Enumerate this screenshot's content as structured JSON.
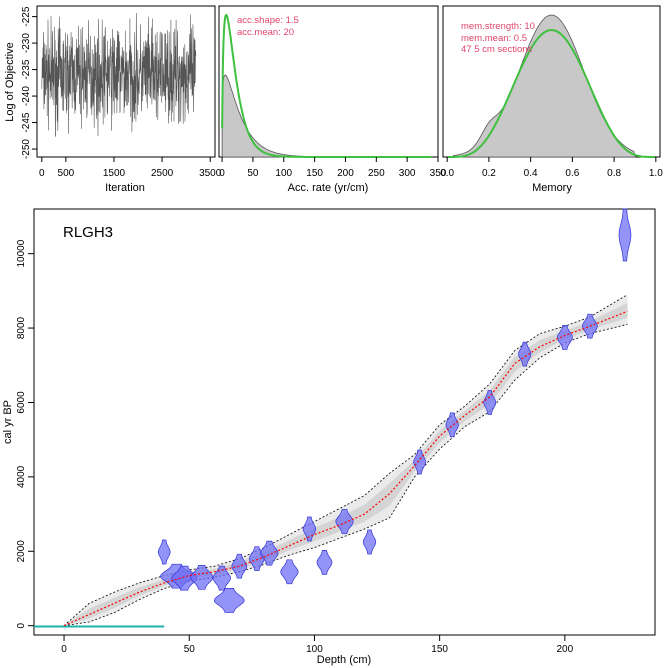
{
  "colors": {
    "prior": "#3fc13f",
    "posterior_fill": "#c8c8c8",
    "posterior_line": "#555555",
    "iteration_trace": "#555555",
    "date_fill": "#6f6ff5",
    "date_line": "#3434d8",
    "model_mean": "#ff0000",
    "envelope": "#000000",
    "notes": "#e0466c",
    "core_bar": "#20b2aa"
  },
  "site": {
    "name": "RLGH3"
  },
  "iteration_panel": {
    "xlabel": "Iteration",
    "ylabel": "Log of Objective",
    "xticks": [
      "0",
      "500",
      "1500",
      "2500",
      "3500"
    ],
    "xtick_values": [
      0,
      500,
      1500,
      2500,
      3500
    ],
    "yticks": [
      "-225",
      "-230",
      "-235",
      "-240",
      "-245",
      "-250"
    ],
    "ytick_values": [
      -225,
      -230,
      -235,
      -240,
      -245,
      -250
    ],
    "xlim": [
      -100,
      3600
    ],
    "ylim": [
      -251.5,
      -223
    ],
    "n_iterations": 3200,
    "mean": -236,
    "spread": 4.5
  },
  "acc_panel": {
    "xlabel": "Acc. rate (yr/cm)",
    "xticks": [
      "0",
      "50",
      "100",
      "150",
      "200",
      "250",
      "300",
      "350"
    ],
    "xtick_values": [
      0,
      50,
      100,
      150,
      200,
      250,
      300,
      350
    ],
    "xlim": [
      -5,
      350
    ],
    "prior_label_1": "acc.shape:  1.5",
    "prior_label_2": "acc.mean:  20",
    "acc_shape": 1.5,
    "acc_mean": 20
  },
  "memory_panel": {
    "xlabel": "Memory",
    "xticks": [
      "0.0",
      "0.2",
      "0.4",
      "0.6",
      "0.8",
      "1.0"
    ],
    "xtick_values": [
      0,
      0.2,
      0.4,
      0.6,
      0.8,
      1.0
    ],
    "xlim": [
      -0.02,
      1.02
    ],
    "label_1": "mem.strength:  10",
    "label_2": "mem.mean:  0.5",
    "label_3": "47  5 cm sections",
    "mem_strength": 10,
    "mem_mean": 0.5
  },
  "chart_data": {
    "type": "scatter",
    "title": "RLGH3",
    "xlabel": "Depth (cm)",
    "ylabel": "cal yr BP",
    "xlim": [
      -12,
      236
    ],
    "ylim": [
      -250,
      11200
    ],
    "xticks": [
      "0",
      "50",
      "100",
      "150",
      "200"
    ],
    "xtick_values": [
      0,
      50,
      100,
      150,
      200
    ],
    "yticks": [
      "0",
      "2000",
      "4000",
      "6000",
      "8000",
      "10000"
    ],
    "ytick_values": [
      0,
      2000,
      4000,
      6000,
      8000,
      10000
    ],
    "grid": false,
    "age_model": {
      "depth": [
        0,
        10,
        20,
        30,
        40,
        50,
        60,
        70,
        80,
        90,
        100,
        110,
        120,
        130,
        140,
        150,
        160,
        170,
        180,
        190,
        200,
        210,
        225
      ],
      "mean_age": [
        0,
        300,
        600,
        900,
        1150,
        1350,
        1450,
        1600,
        1850,
        2150,
        2450,
        2700,
        3000,
        3550,
        4300,
        5100,
        5650,
        6150,
        7050,
        7500,
        7800,
        8050,
        8450
      ],
      "min_age": [
        0,
        100,
        350,
        700,
        1000,
        1200,
        1300,
        1450,
        1650,
        1900,
        2100,
        2350,
        2600,
        2900,
        4000,
        4750,
        5350,
        5750,
        6600,
        7200,
        7600,
        7850,
        8100
      ],
      "max_age": [
        0,
        600,
        900,
        1150,
        1350,
        1500,
        1600,
        1800,
        2100,
        2450,
        2800,
        3150,
        3500,
        4100,
        4600,
        5400,
        5900,
        6500,
        7400,
        7850,
        8050,
        8300,
        8900
      ]
    },
    "dates": [
      {
        "depth": 40,
        "age": 1980,
        "width": 4
      },
      {
        "depth": 45,
        "age": 1330,
        "width": 13
      },
      {
        "depth": 48,
        "age": 1280,
        "width": 10
      },
      {
        "depth": 55,
        "age": 1300,
        "width": 9
      },
      {
        "depth": 63,
        "age": 1280,
        "width": 7
      },
      {
        "depth": 66,
        "age": 680,
        "width": 12
      },
      {
        "depth": 70,
        "age": 1600,
        "width": 6
      },
      {
        "depth": 77,
        "age": 1800,
        "width": 6
      },
      {
        "depth": 82,
        "age": 1950,
        "width": 7
      },
      {
        "depth": 90,
        "age": 1450,
        "width": 7
      },
      {
        "depth": 98,
        "age": 2600,
        "width": 5
      },
      {
        "depth": 104,
        "age": 1700,
        "width": 6
      },
      {
        "depth": 112,
        "age": 2800,
        "width": 7
      },
      {
        "depth": 122,
        "age": 2250,
        "width": 5
      },
      {
        "depth": 142,
        "age": 4400,
        "width": 4
      },
      {
        "depth": 155,
        "age": 5400,
        "width": 5
      },
      {
        "depth": 170,
        "age": 6000,
        "width": 4
      },
      {
        "depth": 184,
        "age": 7300,
        "width": 5
      },
      {
        "depth": 200,
        "age": 7750,
        "width": 6
      },
      {
        "depth": 210,
        "age": 8050,
        "width": 6
      },
      {
        "depth": 224,
        "age": 10500,
        "width": 3
      }
    ],
    "core_bar": {
      "from_depth": -12,
      "to_depth": 40,
      "age": -20
    }
  }
}
